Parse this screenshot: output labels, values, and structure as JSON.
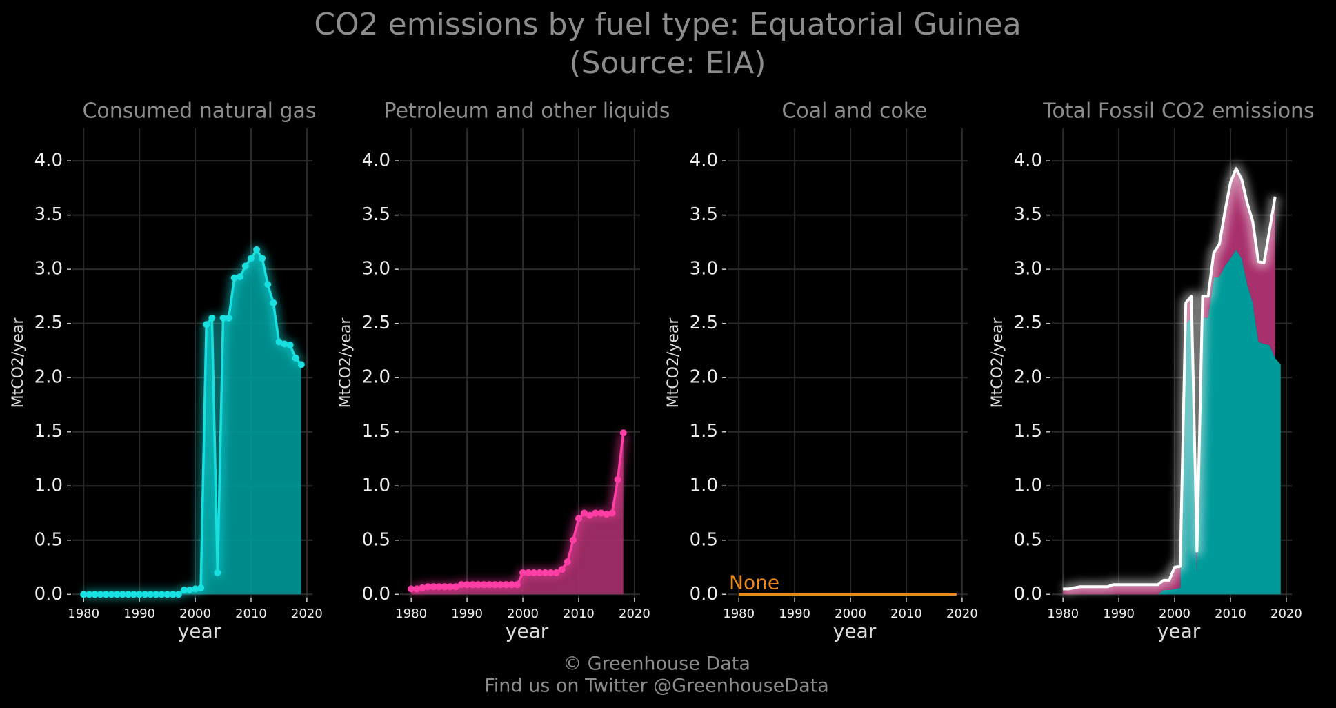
{
  "title": [
    "CO2 emissions by fuel type: Equatorial Guinea",
    "(Source: EIA)"
  ],
  "footer": [
    "© Greenhouse Data",
    "Find us on Twitter @GreenhouseData"
  ],
  "chart_data": [
    {
      "type": "line",
      "title": "Consumed natural gas",
      "x_label": "year",
      "y_label": "MtCO2/year",
      "xlim": [
        1978,
        2021
      ],
      "ylim": [
        -0.03,
        4.3
      ],
      "xticks": [
        1980,
        1990,
        2000,
        2010,
        2020
      ],
      "yticks": [
        {
          "value": 0,
          "label": "0.0"
        },
        0.5,
        {
          "value": 1,
          "label": "1.0"
        },
        1.5,
        {
          "value": 2,
          "label": "2.0"
        },
        2.5,
        {
          "value": 3,
          "label": "3.0"
        },
        3.5,
        {
          "value": 4,
          "label": "4.0"
        }
      ],
      "grid": true,
      "series": [
        {
          "name": "Consumed natural gas",
          "color": "#19e0e0",
          "fill": "#009a9a",
          "area": true,
          "markers": true,
          "x": [
            1980,
            1981,
            1982,
            1983,
            1984,
            1985,
            1986,
            1987,
            1988,
            1989,
            1990,
            1991,
            1992,
            1993,
            1994,
            1995,
            1996,
            1997,
            1998,
            1999,
            2000,
            2001,
            2002,
            2003,
            2004,
            2005,
            2006,
            2007,
            2008,
            2009,
            2010,
            2011,
            2012,
            2013,
            2014,
            2015,
            2016,
            2017,
            2018,
            2019
          ],
          "values": [
            0,
            0,
            0,
            0,
            0,
            0,
            0,
            0,
            0,
            0,
            0,
            0,
            0,
            0,
            0,
            0,
            0,
            0,
            0.04,
            0.04,
            0.05,
            0.06,
            2.49,
            2.55,
            0.2,
            2.55,
            2.55,
            2.92,
            2.93,
            3.03,
            3.1,
            3.18,
            3.1,
            2.86,
            2.69,
            2.33,
            2.31,
            2.3,
            2.18,
            2.12
          ]
        }
      ]
    },
    {
      "type": "line",
      "title": "Petroleum and other liquids",
      "x_label": "year",
      "y_label": "MtCO2/year",
      "xlim": [
        1978,
        2021
      ],
      "ylim": [
        -0.03,
        4.3
      ],
      "xticks": [
        1980,
        1990,
        2000,
        2010,
        2020
      ],
      "yticks": [
        {
          "value": 0,
          "label": "0.0"
        },
        0.5,
        {
          "value": 1,
          "label": "1.0"
        },
        1.5,
        {
          "value": 2,
          "label": "2.0"
        },
        2.5,
        {
          "value": 3,
          "label": "3.0"
        },
        3.5,
        {
          "value": 4,
          "label": "4.0"
        }
      ],
      "grid": true,
      "series": [
        {
          "name": "Petroleum and other liquids",
          "color": "#ff3ea5",
          "fill": "#a8306c",
          "area": true,
          "markers": true,
          "x": [
            1980,
            1981,
            1982,
            1983,
            1984,
            1985,
            1986,
            1987,
            1988,
            1989,
            1990,
            1991,
            1992,
            1993,
            1994,
            1995,
            1996,
            1997,
            1998,
            1999,
            2000,
            2001,
            2002,
            2003,
            2004,
            2005,
            2006,
            2007,
            2008,
            2009,
            2010,
            2011,
            2012,
            2013,
            2014,
            2015,
            2016,
            2017,
            2018
          ],
          "values": [
            0.05,
            0.05,
            0.06,
            0.07,
            0.07,
            0.07,
            0.07,
            0.07,
            0.07,
            0.09,
            0.09,
            0.09,
            0.09,
            0.09,
            0.09,
            0.09,
            0.09,
            0.09,
            0.09,
            0.09,
            0.2,
            0.2,
            0.2,
            0.2,
            0.2,
            0.2,
            0.2,
            0.23,
            0.3,
            0.5,
            0.7,
            0.75,
            0.73,
            0.75,
            0.75,
            0.74,
            0.75,
            1.06,
            1.49
          ]
        }
      ]
    },
    {
      "type": "line",
      "title": "Coal and coke",
      "x_label": "year",
      "y_label": "MtCO2/year",
      "xlim": [
        1978,
        2021
      ],
      "ylim": [
        -0.03,
        4.3
      ],
      "xticks": [
        1980,
        1990,
        2000,
        2010,
        2020
      ],
      "yticks": [
        {
          "value": 0,
          "label": "0.0"
        },
        0.5,
        {
          "value": 1,
          "label": "1.0"
        },
        1.5,
        {
          "value": 2,
          "label": "2.0"
        },
        2.5,
        {
          "value": 3,
          "label": "3.0"
        },
        3.5,
        {
          "value": 4,
          "label": "4.0"
        }
      ],
      "grid": true,
      "annotation": "None",
      "series": [
        {
          "name": "Coal and coke",
          "color": "#e8891c",
          "area": false,
          "markers": false,
          "x": [
            1980,
            1981,
            1982,
            1983,
            1984,
            1985,
            1986,
            1987,
            1988,
            1989,
            1990,
            1991,
            1992,
            1993,
            1994,
            1995,
            1996,
            1997,
            1998,
            1999,
            2000,
            2001,
            2002,
            2003,
            2004,
            2005,
            2006,
            2007,
            2008,
            2009,
            2010,
            2011,
            2012,
            2013,
            2014,
            2015,
            2016,
            2017,
            2018,
            2019
          ],
          "values": [
            0,
            0,
            0,
            0,
            0,
            0,
            0,
            0,
            0,
            0,
            0,
            0,
            0,
            0,
            0,
            0,
            0,
            0,
            0,
            0,
            0,
            0,
            0,
            0,
            0,
            0,
            0,
            0,
            0,
            0,
            0,
            0,
            0,
            0,
            0,
            0,
            0,
            0,
            0,
            0
          ]
        }
      ]
    },
    {
      "type": "stacked",
      "title": "Total Fossil CO2 emissions",
      "x_label": "year",
      "y_label": "MtCO2/year",
      "xlim": [
        1978,
        2021
      ],
      "ylim": [
        -0.03,
        4.3
      ],
      "xticks": [
        1980,
        1990,
        2000,
        2010,
        2020
      ],
      "yticks": [
        {
          "value": 0,
          "label": "0.0"
        },
        0.5,
        {
          "value": 1,
          "label": "1.0"
        },
        1.5,
        {
          "value": 2,
          "label": "2.0"
        },
        2.5,
        {
          "value": 3,
          "label": "3.0"
        },
        3.5,
        {
          "value": 4,
          "label": "4.0"
        }
      ],
      "grid": true,
      "series": [
        {
          "name": "Consumed natural gas",
          "color": "#009a9a",
          "stack": true,
          "x": [
            1980,
            1981,
            1982,
            1983,
            1984,
            1985,
            1986,
            1987,
            1988,
            1989,
            1990,
            1991,
            1992,
            1993,
            1994,
            1995,
            1996,
            1997,
            1998,
            1999,
            2000,
            2001,
            2002,
            2003,
            2004,
            2005,
            2006,
            2007,
            2008,
            2009,
            2010,
            2011,
            2012,
            2013,
            2014,
            2015,
            2016,
            2017,
            2018,
            2019
          ],
          "values": [
            0,
            0,
            0,
            0,
            0,
            0,
            0,
            0,
            0,
            0,
            0,
            0,
            0,
            0,
            0,
            0,
            0,
            0,
            0.04,
            0.04,
            0.05,
            0.06,
            2.49,
            2.55,
            0.2,
            2.55,
            2.55,
            2.92,
            2.93,
            3.03,
            3.1,
            3.18,
            3.1,
            2.86,
            2.69,
            2.33,
            2.31,
            2.3,
            2.18,
            2.12
          ]
        },
        {
          "name": "Petroleum and other liquids",
          "color": "#a8306c",
          "stack": true,
          "x": [
            1980,
            1981,
            1982,
            1983,
            1984,
            1985,
            1986,
            1987,
            1988,
            1989,
            1990,
            1991,
            1992,
            1993,
            1994,
            1995,
            1996,
            1997,
            1998,
            1999,
            2000,
            2001,
            2002,
            2003,
            2004,
            2005,
            2006,
            2007,
            2008,
            2009,
            2010,
            2011,
            2012,
            2013,
            2014,
            2015,
            2016,
            2017,
            2018
          ],
          "values": [
            0.05,
            0.05,
            0.06,
            0.07,
            0.07,
            0.07,
            0.07,
            0.07,
            0.07,
            0.09,
            0.09,
            0.09,
            0.09,
            0.09,
            0.09,
            0.09,
            0.09,
            0.09,
            0.09,
            0.09,
            0.2,
            0.2,
            0.2,
            0.2,
            0.2,
            0.2,
            0.2,
            0.23,
            0.3,
            0.5,
            0.7,
            0.75,
            0.73,
            0.75,
            0.75,
            0.74,
            0.75,
            1.06,
            1.49
          ]
        },
        {
          "name": "Total Fossil CO2 emissions",
          "color": "#ffffff",
          "stack": false,
          "x": [
            1980,
            1981,
            1982,
            1983,
            1984,
            1985,
            1986,
            1987,
            1988,
            1989,
            1990,
            1991,
            1992,
            1993,
            1994,
            1995,
            1996,
            1997,
            1998,
            1999,
            2000,
            2001,
            2002,
            2003,
            2004,
            2005,
            2006,
            2007,
            2008,
            2009,
            2010,
            2011,
            2012,
            2013,
            2014,
            2015,
            2016,
            2017,
            2018
          ],
          "values": [
            0.05,
            0.05,
            0.06,
            0.07,
            0.07,
            0.07,
            0.07,
            0.07,
            0.07,
            0.09,
            0.09,
            0.09,
            0.09,
            0.09,
            0.09,
            0.09,
            0.09,
            0.09,
            0.13,
            0.13,
            0.25,
            0.26,
            2.69,
            2.75,
            0.4,
            2.75,
            2.75,
            3.15,
            3.23,
            3.53,
            3.8,
            3.93,
            3.83,
            3.61,
            3.44,
            3.07,
            3.06,
            3.36,
            3.67
          ]
        }
      ]
    }
  ]
}
